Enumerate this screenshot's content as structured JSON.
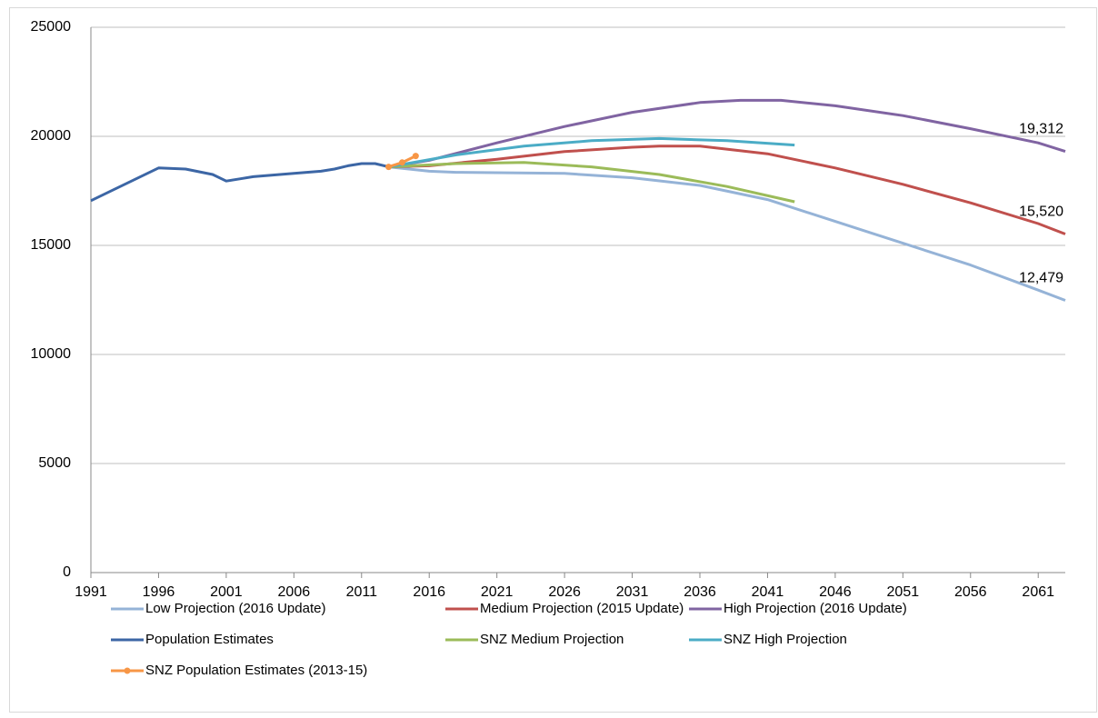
{
  "chart_data": {
    "type": "line",
    "xlim": [
      1991,
      2063
    ],
    "xticks": [
      1991,
      1996,
      2001,
      2006,
      2011,
      2016,
      2021,
      2026,
      2031,
      2036,
      2041,
      2046,
      2051,
      2056,
      2061
    ],
    "ylim": [
      0,
      25000
    ],
    "yticks": [
      0,
      5000,
      10000,
      15000,
      20000,
      25000
    ],
    "grid": true,
    "legend": "bottom",
    "series": [
      {
        "name": "Low Projection (2016 Update)",
        "color": "#95b3d7",
        "x": [
          2013,
          2016,
          2018,
          2026,
          2031,
          2036,
          2041,
          2046,
          2051,
          2056,
          2061,
          2063
        ],
        "values": [
          18600,
          18400,
          18350,
          18300,
          18100,
          17750,
          17100,
          16100,
          15100,
          14100,
          12950,
          12479
        ],
        "value_labels": [
          null,
          null,
          null,
          null,
          null,
          null,
          null,
          null,
          null,
          null,
          null,
          "12,479"
        ]
      },
      {
        "name": "Medium Projection (2015 Update)",
        "color": "#c0504d",
        "x": [
          2013,
          2016,
          2021,
          2026,
          2031,
          2033,
          2036,
          2041,
          2046,
          2051,
          2056,
          2061,
          2063
        ],
        "values": [
          18600,
          18650,
          18950,
          19300,
          19500,
          19550,
          19550,
          19200,
          18550,
          17800,
          16950,
          16000,
          15520
        ],
        "value_labels": [
          null,
          null,
          null,
          null,
          null,
          null,
          null,
          null,
          null,
          null,
          null,
          null,
          "15,520"
        ]
      },
      {
        "name": "High Projection (2016 Update)",
        "color": "#8064a2",
        "x": [
          2013,
          2016,
          2021,
          2026,
          2031,
          2036,
          2039,
          2042,
          2046,
          2051,
          2056,
          2061,
          2063
        ],
        "values": [
          18600,
          18900,
          19700,
          20450,
          21100,
          21550,
          21650,
          21650,
          21400,
          20950,
          20350,
          19700,
          19312
        ],
        "value_labels": [
          null,
          null,
          null,
          null,
          null,
          null,
          null,
          null,
          null,
          null,
          null,
          null,
          "19,312"
        ]
      },
      {
        "name": "Population Estimates",
        "color": "#3c66a5",
        "x": [
          1991,
          1996,
          1998,
          2000,
          2001,
          2002,
          2003,
          2006,
          2008,
          2009,
          2010,
          2011,
          2012,
          2013
        ],
        "values": [
          17050,
          18550,
          18500,
          18250,
          17950,
          18050,
          18150,
          18300,
          18400,
          18500,
          18650,
          18750,
          18750,
          18600
        ]
      },
      {
        "name": "SNZ Medium Projection",
        "color": "#9bbb59",
        "x": [
          2013,
          2018,
          2023,
          2028,
          2033,
          2038,
          2043
        ],
        "values": [
          18600,
          18750,
          18800,
          18600,
          18250,
          17700,
          17000
        ]
      },
      {
        "name": "SNZ High Projection",
        "color": "#4bacc6",
        "x": [
          2013,
          2018,
          2023,
          2028,
          2033,
          2038,
          2043
        ],
        "values": [
          18600,
          19150,
          19550,
          19800,
          19900,
          19800,
          19600
        ]
      },
      {
        "name": "SNZ Population Estimates (2013-15)",
        "color": "#f79646",
        "markers": true,
        "x": [
          2013,
          2014,
          2015
        ],
        "values": [
          18600,
          18800,
          19100
        ]
      }
    ]
  }
}
